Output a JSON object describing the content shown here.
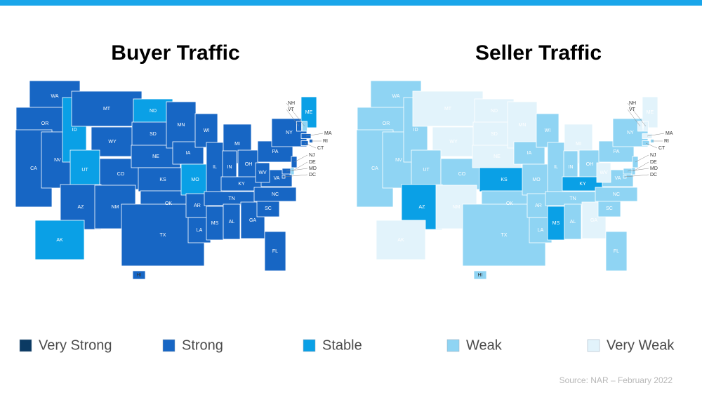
{
  "source": "Source: NAR – February 2022",
  "legend": [
    {
      "label": "Very Strong",
      "color": "#0b3a63"
    },
    {
      "label": "Strong",
      "color": "#1766c4"
    },
    {
      "label": "Stable",
      "color": "#0aa0e6"
    },
    {
      "label": "Weak",
      "color": "#8fd4f3"
    },
    {
      "label": "Very Weak",
      "color": "#e2f3fb"
    }
  ],
  "maps": [
    {
      "title": "Buyer Traffic",
      "states": [
        {
          "id": "WA",
          "level": "Strong"
        },
        {
          "id": "OR",
          "level": "Strong"
        },
        {
          "id": "CA",
          "level": "Strong"
        },
        {
          "id": "NV",
          "level": "Strong"
        },
        {
          "id": "ID",
          "level": "Stable"
        },
        {
          "id": "MT",
          "level": "Strong"
        },
        {
          "id": "WY",
          "level": "Strong"
        },
        {
          "id": "UT",
          "level": "Stable"
        },
        {
          "id": "CO",
          "level": "Strong"
        },
        {
          "id": "AZ",
          "level": "Strong"
        },
        {
          "id": "NM",
          "level": "Strong"
        },
        {
          "id": "ND",
          "level": "Stable"
        },
        {
          "id": "SD",
          "level": "Strong"
        },
        {
          "id": "NE",
          "level": "Strong"
        },
        {
          "id": "KS",
          "level": "Strong"
        },
        {
          "id": "OK",
          "level": "Strong"
        },
        {
          "id": "TX",
          "level": "Strong"
        },
        {
          "id": "MN",
          "level": "Strong"
        },
        {
          "id": "IA",
          "level": "Strong"
        },
        {
          "id": "MO",
          "level": "Stable"
        },
        {
          "id": "AR",
          "level": "Strong"
        },
        {
          "id": "LA",
          "level": "Strong"
        },
        {
          "id": "WI",
          "level": "Strong"
        },
        {
          "id": "IL",
          "level": "Strong"
        },
        {
          "id": "MI",
          "level": "Strong"
        },
        {
          "id": "IN",
          "level": "Strong"
        },
        {
          "id": "OH",
          "level": "Strong"
        },
        {
          "id": "KY",
          "level": "Strong"
        },
        {
          "id": "TN",
          "level": "Strong"
        },
        {
          "id": "MS",
          "level": "Strong"
        },
        {
          "id": "AL",
          "level": "Strong"
        },
        {
          "id": "GA",
          "level": "Strong"
        },
        {
          "id": "FL",
          "level": "Strong"
        },
        {
          "id": "SC",
          "level": "Strong"
        },
        {
          "id": "NC",
          "level": "Strong"
        },
        {
          "id": "VA",
          "level": "Strong"
        },
        {
          "id": "WV",
          "level": "Strong"
        },
        {
          "id": "PA",
          "level": "Strong"
        },
        {
          "id": "NY",
          "level": "Strong"
        },
        {
          "id": "ME",
          "level": "Stable"
        },
        {
          "id": "AK",
          "level": "Stable"
        },
        {
          "id": "HI",
          "level": "Strong"
        },
        {
          "id": "NH",
          "level": "Weak"
        },
        {
          "id": "VT",
          "level": "Strong"
        },
        {
          "id": "MA",
          "level": "Strong"
        },
        {
          "id": "RI",
          "level": "Strong"
        },
        {
          "id": "CT",
          "level": "Strong"
        },
        {
          "id": "NJ",
          "level": "Strong"
        },
        {
          "id": "DE",
          "level": "Weak"
        },
        {
          "id": "MD",
          "level": "Strong"
        },
        {
          "id": "DC",
          "level": "Strong"
        }
      ]
    },
    {
      "title": "Seller Traffic",
      "states": [
        {
          "id": "WA",
          "level": "Weak"
        },
        {
          "id": "OR",
          "level": "Weak"
        },
        {
          "id": "CA",
          "level": "Weak"
        },
        {
          "id": "NV",
          "level": "Weak"
        },
        {
          "id": "ID",
          "level": "Weak"
        },
        {
          "id": "MT",
          "level": "Very Weak"
        },
        {
          "id": "WY",
          "level": "Very Weak"
        },
        {
          "id": "UT",
          "level": "Weak"
        },
        {
          "id": "CO",
          "level": "Weak"
        },
        {
          "id": "AZ",
          "level": "Stable"
        },
        {
          "id": "NM",
          "level": "Very Weak"
        },
        {
          "id": "ND",
          "level": "Very Weak"
        },
        {
          "id": "SD",
          "level": "Very Weak"
        },
        {
          "id": "NE",
          "level": "Very Weak"
        },
        {
          "id": "KS",
          "level": "Stable"
        },
        {
          "id": "OK",
          "level": "Weak"
        },
        {
          "id": "TX",
          "level": "Weak"
        },
        {
          "id": "MN",
          "level": "Very Weak"
        },
        {
          "id": "IA",
          "level": "Weak"
        },
        {
          "id": "MO",
          "level": "Weak"
        },
        {
          "id": "AR",
          "level": "Weak"
        },
        {
          "id": "LA",
          "level": "Weak"
        },
        {
          "id": "WI",
          "level": "Weak"
        },
        {
          "id": "IL",
          "level": "Weak"
        },
        {
          "id": "MI",
          "level": "Very Weak"
        },
        {
          "id": "IN",
          "level": "Weak"
        },
        {
          "id": "OH",
          "level": "Weak"
        },
        {
          "id": "KY",
          "level": "Stable"
        },
        {
          "id": "TN",
          "level": "Weak"
        },
        {
          "id": "MS",
          "level": "Stable"
        },
        {
          "id": "AL",
          "level": "Weak"
        },
        {
          "id": "GA",
          "level": "Very Weak"
        },
        {
          "id": "FL",
          "level": "Weak"
        },
        {
          "id": "SC",
          "level": "Weak"
        },
        {
          "id": "NC",
          "level": "Weak"
        },
        {
          "id": "VA",
          "level": "Weak"
        },
        {
          "id": "WV",
          "level": "Very Weak"
        },
        {
          "id": "PA",
          "level": "Weak"
        },
        {
          "id": "NY",
          "level": "Weak"
        },
        {
          "id": "ME",
          "level": "Very Weak"
        },
        {
          "id": "AK",
          "level": "Very Weak"
        },
        {
          "id": "HI",
          "level": "Weak"
        },
        {
          "id": "NH",
          "level": "Very Weak"
        },
        {
          "id": "VT",
          "level": "Very Weak"
        },
        {
          "id": "MA",
          "level": "Very Weak"
        },
        {
          "id": "RI",
          "level": "Weak"
        },
        {
          "id": "CT",
          "level": "Weak"
        },
        {
          "id": "NJ",
          "level": "Weak"
        },
        {
          "id": "DE",
          "level": "Weak"
        },
        {
          "id": "MD",
          "level": "Weak"
        },
        {
          "id": "DC",
          "level": "Weak"
        }
      ]
    }
  ]
}
